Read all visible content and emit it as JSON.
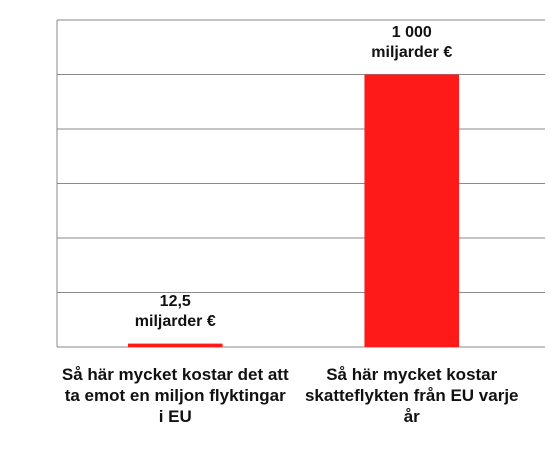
{
  "chart_data": {
    "type": "bar",
    "categories": [
      "Så här mycket kostar det att ta emot en miljon flyktingar i EU",
      "Så här mycket kostar skatteflykten från EU varje år"
    ],
    "values": [
      12.5,
      1000
    ],
    "value_labels": [
      "12,5\nmiljarder €",
      "1 000\nmiljarder €"
    ],
    "color": "#ff1a1a",
    "ylim": [
      0,
      1200
    ],
    "yticks": [
      0,
      200,
      400,
      600,
      800,
      1000,
      1200
    ],
    "grid": true
  }
}
